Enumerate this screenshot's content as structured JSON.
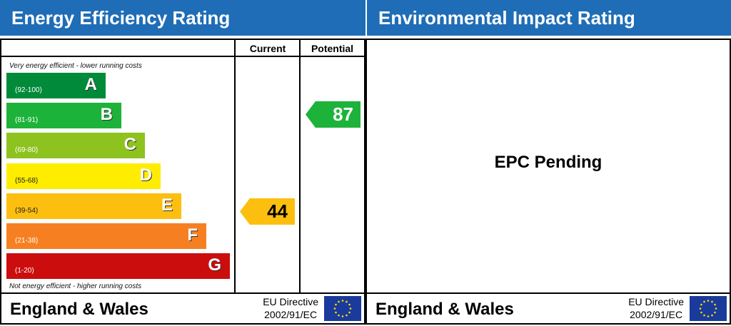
{
  "left": {
    "title": "Energy Efficiency Rating",
    "col_current": "Current",
    "col_potential": "Potential",
    "top_note": "Very energy efficient - lower running costs",
    "bottom_note": "Not energy efficient - higher running costs",
    "footer_region": "England & Wales",
    "footer_directive_1": "EU Directive",
    "footer_directive_2": "2002/91/EC"
  },
  "right": {
    "title": "Environmental Impact Rating",
    "status": "EPC Pending",
    "footer_region": "England & Wales",
    "footer_directive_1": "EU Directive",
    "footer_directive_2": "2002/91/EC"
  },
  "chart_data": {
    "type": "bar",
    "bands": [
      {
        "letter": "A",
        "range": "(92-100)",
        "color": "#008a3a"
      },
      {
        "letter": "B",
        "range": "(81-91)",
        "color": "#1db33a"
      },
      {
        "letter": "C",
        "range": "(69-80)",
        "color": "#8dc21f"
      },
      {
        "letter": "D",
        "range": "(55-68)",
        "color": "#ffed00"
      },
      {
        "letter": "E",
        "range": "(39-54)",
        "color": "#fcbf10"
      },
      {
        "letter": "F",
        "range": "(21-38)",
        "color": "#f68021"
      },
      {
        "letter": "G",
        "range": "(1-20)",
        "color": "#cc0d0d"
      }
    ],
    "current": {
      "value": "44",
      "band": "E",
      "color": "#fcbf10"
    },
    "potential": {
      "value": "87",
      "band": "B",
      "color": "#1db33a"
    }
  }
}
